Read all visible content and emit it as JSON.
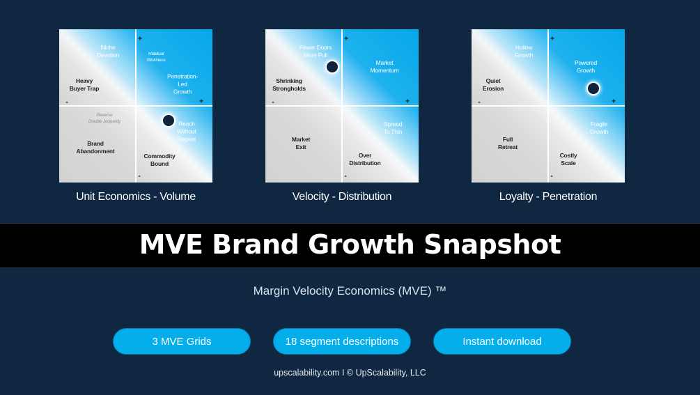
{
  "colors": {
    "background": "#0f2740",
    "accent_blue": "#03aeea",
    "banner": "#000000",
    "marker": "#10243d"
  },
  "grids": [
    {
      "title": "Unit Economics - Volume",
      "labels": [
        "Niche\nDevotion",
        "Habitual\nStickiness",
        "Heavy\nBuyer Trap",
        "Penetration-Led\nGrowth",
        "Reverse\nDouble Jeopardy",
        "Brand\nAbandonment",
        "Reach\nWithout\nRepeat",
        "Commodity\nBound"
      ],
      "signs": {
        "y_plus": "+",
        "x_plus": "+",
        "x_minus": "-",
        "y_minus": "-"
      },
      "marker_quadrant": "bottom-right"
    },
    {
      "title": "Velocity - Distribution",
      "labels": [
        "Fewer Doors\nMore Pull",
        "Market\nMomentum",
        "Shrinking\nStrongholds",
        "Spread\nTo Thin",
        "Market\nExit",
        "Over\nDistribution"
      ],
      "signs": {
        "y_plus": "+",
        "x_plus": "+",
        "x_minus": "-",
        "y_minus": "-"
      },
      "marker_quadrant": "top-left"
    },
    {
      "title": "Loyalty - Penetration",
      "labels": [
        "Hollow\nGrowth",
        "Powered\nGrowth",
        "Quiet\nErosion",
        "Fragile\nGrowth",
        "Full\nRetreat",
        "Costly\nScale"
      ],
      "signs": {
        "y_plus": "+",
        "x_plus": "+",
        "x_minus": "-",
        "y_minus": "-"
      },
      "marker_quadrant": "top-right"
    }
  ],
  "banner": {
    "title": "MVE Brand Growth Snapshot"
  },
  "subtitle": "Margin Velocity Economics (MVE) ™",
  "buttons": [
    "3 MVE Grids",
    "18 segment descriptions",
    "Instant download"
  ],
  "footer": "upscalability.com  I  © UpScalability, LLC"
}
